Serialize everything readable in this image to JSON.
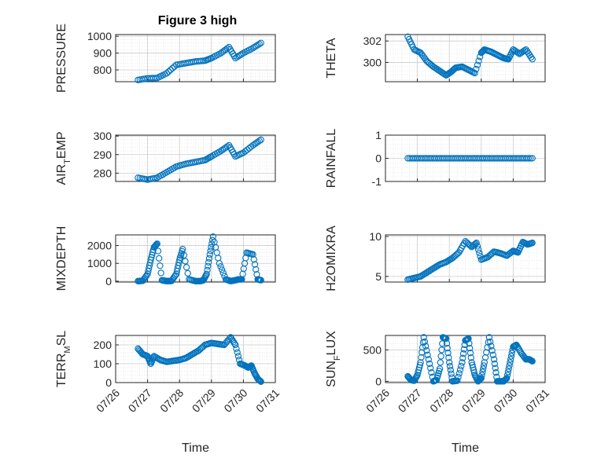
{
  "figure_title": "Figure 3 high",
  "colors": {
    "marker": "#0072BD",
    "axis": "#262626",
    "grid": "#cccccc",
    "minor_grid": "#dddddd"
  },
  "chart_data": [
    {
      "type": "scatter",
      "name": "pressure",
      "ylabel": "PRESSURE",
      "ylabel_sub": "",
      "ylim": [
        730,
        1010
      ],
      "yticks": [
        800,
        900,
        1000
      ],
      "ytick_labels": [
        "800",
        "900",
        "1000"
      ],
      "grid": true,
      "xlabel": "",
      "x": [
        0.7,
        1.0,
        1.3,
        1.6,
        1.9,
        2.2,
        2.5,
        2.8,
        3.0,
        3.3,
        3.55,
        3.75,
        4.0,
        4.3,
        4.55
      ],
      "y": [
        740,
        750,
        752,
        780,
        830,
        840,
        850,
        855,
        870,
        900,
        935,
        870,
        900,
        930,
        960
      ]
    },
    {
      "type": "scatter",
      "name": "theta",
      "ylabel": "THETA",
      "ylabel_sub": "",
      "ylim": [
        298.2,
        302.6
      ],
      "yticks": [
        300,
        302
      ],
      "ytick_labels": [
        "300",
        "302"
      ],
      "grid": true,
      "xlabel": "",
      "x": [
        0.7,
        0.9,
        1.1,
        1.3,
        1.5,
        1.7,
        1.9,
        2.05,
        2.2,
        2.4,
        2.6,
        2.8,
        3.0,
        3.1,
        3.3,
        3.5,
        3.7,
        3.85,
        4.0,
        4.2,
        4.4,
        4.6
      ],
      "y": [
        302.4,
        301.2,
        300.9,
        300.1,
        299.6,
        299.2,
        298.8,
        299.1,
        299.5,
        299.6,
        299.3,
        299.0,
        300.9,
        301.2,
        301.0,
        300.7,
        300.4,
        300.3,
        301.2,
        300.8,
        301.2,
        300.3
      ]
    },
    {
      "type": "scatter",
      "name": "air-temp",
      "ylabel": "AIR",
      "ylabel_sub": "T",
      "ylabel_suffix": "EMP",
      "ylim": [
        275.5,
        300.5
      ],
      "yticks": [
        280,
        290,
        300
      ],
      "ytick_labels": [
        "280",
        "290",
        "300"
      ],
      "grid": true,
      "xlabel": "",
      "x": [
        0.7,
        1.0,
        1.3,
        1.6,
        1.9,
        2.2,
        2.5,
        2.8,
        3.0,
        3.3,
        3.55,
        3.75,
        4.0,
        4.3,
        4.55
      ],
      "y": [
        277.5,
        276.5,
        277.5,
        280.5,
        283.5,
        285,
        286,
        287,
        289,
        292,
        295,
        289,
        291,
        295,
        298
      ]
    },
    {
      "type": "scatter",
      "name": "rainfall",
      "ylabel": "RAINFALL",
      "ylabel_sub": "",
      "ylim": [
        -1,
        1
      ],
      "yticks": [
        -1,
        0,
        1
      ],
      "ytick_labels": [
        "-1",
        "0",
        "1"
      ],
      "grid": true,
      "xlabel": "",
      "x": [
        0.7,
        1.0,
        1.3,
        1.6,
        1.9,
        2.2,
        2.5,
        2.8,
        3.1,
        3.4,
        3.7,
        4.0,
        4.3,
        4.6
      ],
      "y": [
        0,
        0,
        0,
        0,
        0,
        0,
        0,
        0,
        0,
        0,
        0,
        0,
        0,
        0
      ]
    },
    {
      "type": "scatter",
      "name": "mixdepth",
      "ylabel": "MIXDEPTH",
      "ylabel_sub": "",
      "ylim": [
        -50,
        2600
      ],
      "yticks": [
        0,
        1000,
        2000
      ],
      "ytick_labels": [
        "0",
        "1000",
        "2000"
      ],
      "grid": true,
      "xlabel": "",
      "x": [
        0.7,
        0.85,
        1.0,
        1.1,
        1.2,
        1.3,
        1.45,
        1.6,
        1.75,
        1.9,
        2.0,
        2.1,
        2.3,
        2.5,
        2.65,
        2.75,
        2.85,
        2.95,
        3.05,
        3.25,
        3.45,
        3.6,
        3.75,
        3.85,
        3.95,
        4.1,
        4.3,
        4.45,
        4.55
      ],
      "y": [
        0,
        20,
        400,
        1200,
        1900,
        2100,
        50,
        0,
        10,
        400,
        1200,
        1800,
        100,
        0,
        0,
        50,
        400,
        1500,
        2500,
        1000,
        100,
        0,
        50,
        100,
        100,
        1600,
        1500,
        100,
        50
      ]
    },
    {
      "type": "scatter",
      "name": "h2o-mixing-ratio",
      "ylabel": "H2OMIXRA",
      "ylabel_sub": "",
      "ylim": [
        4.3,
        10.2
      ],
      "yticks": [
        5,
        10
      ],
      "ytick_labels": [
        "5",
        "10"
      ],
      "grid": true,
      "xlabel": "",
      "x": [
        0.7,
        0.9,
        1.1,
        1.3,
        1.5,
        1.7,
        1.9,
        2.1,
        2.3,
        2.5,
        2.7,
        2.85,
        3.0,
        3.2,
        3.4,
        3.6,
        3.8,
        4.0,
        4.15,
        4.3,
        4.45,
        4.6
      ],
      "y": [
        4.6,
        4.8,
        5.0,
        5.5,
        6.0,
        6.5,
        6.8,
        7.3,
        8.0,
        9.4,
        8.7,
        9.2,
        7.1,
        7.4,
        8.1,
        7.9,
        7.6,
        8.2,
        8.0,
        9.3,
        9.0,
        9.2
      ]
    },
    {
      "type": "scatter",
      "name": "terrain-msl",
      "ylabel": "TERR",
      "ylabel_sub": "M",
      "ylabel_suffix": "SL",
      "ylim": [
        0,
        250
      ],
      "yticks": [
        0,
        100,
        200
      ],
      "ytick_labels": [
        "0",
        "100",
        "200"
      ],
      "grid": true,
      "xlabel": "Time",
      "x": [
        0.7,
        0.85,
        1.0,
        1.1,
        1.2,
        1.4,
        1.6,
        1.8,
        2.0,
        2.2,
        2.4,
        2.6,
        2.8,
        3.0,
        3.2,
        3.4,
        3.6,
        3.75,
        3.9,
        4.05,
        4.15,
        4.25,
        4.35,
        4.45,
        4.55
      ],
      "y": [
        180,
        150,
        140,
        100,
        140,
        120,
        110,
        115,
        120,
        130,
        150,
        170,
        200,
        210,
        205,
        200,
        240,
        200,
        100,
        90,
        80,
        90,
        50,
        20,
        5
      ]
    },
    {
      "type": "scatter",
      "name": "sun-flux",
      "ylabel": "SUN",
      "ylabel_sub": "F",
      "ylabel_suffix": "LUX",
      "ylim": [
        -20,
        730
      ],
      "yticks": [
        0,
        500
      ],
      "ytick_labels": [
        "0",
        "500"
      ],
      "grid": true,
      "xlabel": "Time",
      "x": [
        0.7,
        0.8,
        0.9,
        1.0,
        1.1,
        1.2,
        1.35,
        1.5,
        1.6,
        1.7,
        1.8,
        1.9,
        2.0,
        2.1,
        2.25,
        2.4,
        2.5,
        2.6,
        2.7,
        2.8,
        2.9,
        3.0,
        3.1,
        3.25,
        3.4,
        3.5,
        3.6,
        3.7,
        3.8,
        3.9,
        4.0,
        4.1,
        4.25,
        4.4,
        4.5,
        4.6
      ],
      "y": [
        80,
        20,
        10,
        100,
        300,
        700,
        350,
        0,
        20,
        200,
        700,
        680,
        300,
        0,
        10,
        300,
        650,
        680,
        300,
        100,
        0,
        50,
        300,
        700,
        350,
        0,
        0,
        0,
        50,
        300,
        550,
        580,
        450,
        350,
        350,
        320
      ]
    }
  ],
  "xaxis": {
    "xlim": [
      0,
      5
    ],
    "xticks": [
      0,
      1,
      2,
      3,
      4,
      5
    ],
    "xtick_labels": [
      "07/26",
      "07/27",
      "07/28",
      "07/29",
      "07/30",
      "07/31"
    ],
    "tick_label_rotation_deg": 45
  }
}
